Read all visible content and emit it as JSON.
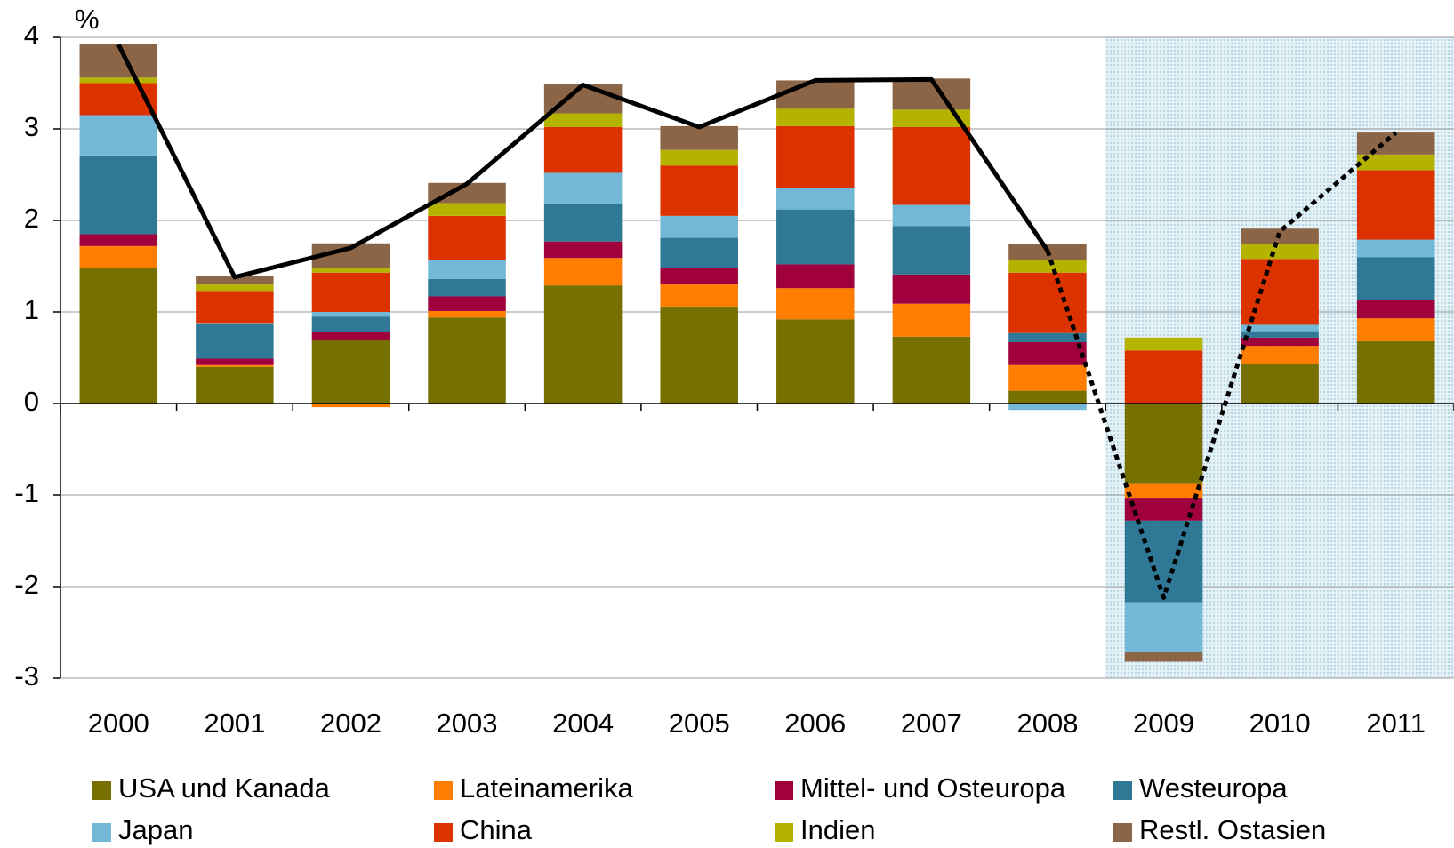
{
  "chart_data": {
    "type": "stacked-bar-line",
    "y_unit_label": "%",
    "categories": [
      "2000",
      "2001",
      "2002",
      "2003",
      "2004",
      "2005",
      "2006",
      "2007",
      "2008",
      "2009",
      "2010",
      "2011"
    ],
    "series": [
      {
        "name": "USA und Kanada",
        "color": "#767000",
        "values": [
          1.48,
          0.4,
          0.69,
          0.94,
          1.29,
          1.06,
          0.92,
          0.73,
          0.14,
          -0.87,
          0.43,
          0.68
        ]
      },
      {
        "name": "Lateinamerika",
        "color": "#ff7d00",
        "values": [
          0.24,
          0.02,
          -0.04,
          0.07,
          0.3,
          0.24,
          0.34,
          0.36,
          0.28,
          -0.16,
          0.2,
          0.25
        ]
      },
      {
        "name": "Mittel- und Osteuropa",
        "color": "#a0003c",
        "values": [
          0.13,
          0.07,
          0.09,
          0.16,
          0.18,
          0.18,
          0.26,
          0.32,
          0.25,
          -0.25,
          0.09,
          0.2
        ]
      },
      {
        "name": "Westeuropa",
        "color": "#2f7896",
        "values": [
          0.86,
          0.38,
          0.17,
          0.19,
          0.41,
          0.33,
          0.6,
          0.53,
          0.1,
          -0.89,
          0.07,
          0.47
        ]
      },
      {
        "name": "Japan",
        "color": "#73b9d7",
        "values": [
          0.44,
          0.01,
          0.05,
          0.21,
          0.34,
          0.24,
          0.23,
          0.23,
          -0.07,
          -0.54,
          0.07,
          0.19
        ]
      },
      {
        "name": "China",
        "color": "#dc3200",
        "values": [
          0.35,
          0.35,
          0.43,
          0.48,
          0.5,
          0.55,
          0.68,
          0.85,
          0.66,
          0.58,
          0.72,
          0.76
        ]
      },
      {
        "name": "Indien",
        "color": "#b4b400",
        "values": [
          0.06,
          0.07,
          0.05,
          0.14,
          0.15,
          0.17,
          0.19,
          0.19,
          0.14,
          0.14,
          0.16,
          0.17
        ]
      },
      {
        "name": "Restl. Ostasien",
        "color": "#8c6446",
        "values": [
          0.37,
          0.09,
          0.27,
          0.22,
          0.32,
          0.26,
          0.31,
          0.34,
          0.17,
          -0.11,
          0.17,
          0.24
        ]
      }
    ],
    "lines": [
      {
        "style": "solid",
        "color": "#000000",
        "values": [
          3.92,
          1.38,
          1.7,
          2.4,
          3.48,
          3.02,
          3.53,
          3.54,
          1.67,
          null,
          null,
          null
        ]
      },
      {
        "style": "dotted",
        "color": "#000000",
        "values": [
          null,
          null,
          null,
          null,
          null,
          null,
          null,
          null,
          1.67,
          -2.12,
          1.88,
          2.96
        ]
      }
    ],
    "shaded_region": [
      "2009",
      "2011"
    ],
    "ylim": [
      -3,
      4
    ],
    "yticks": [
      -3,
      -2,
      -1,
      0,
      1,
      2,
      3,
      4
    ],
    "grid": true
  }
}
